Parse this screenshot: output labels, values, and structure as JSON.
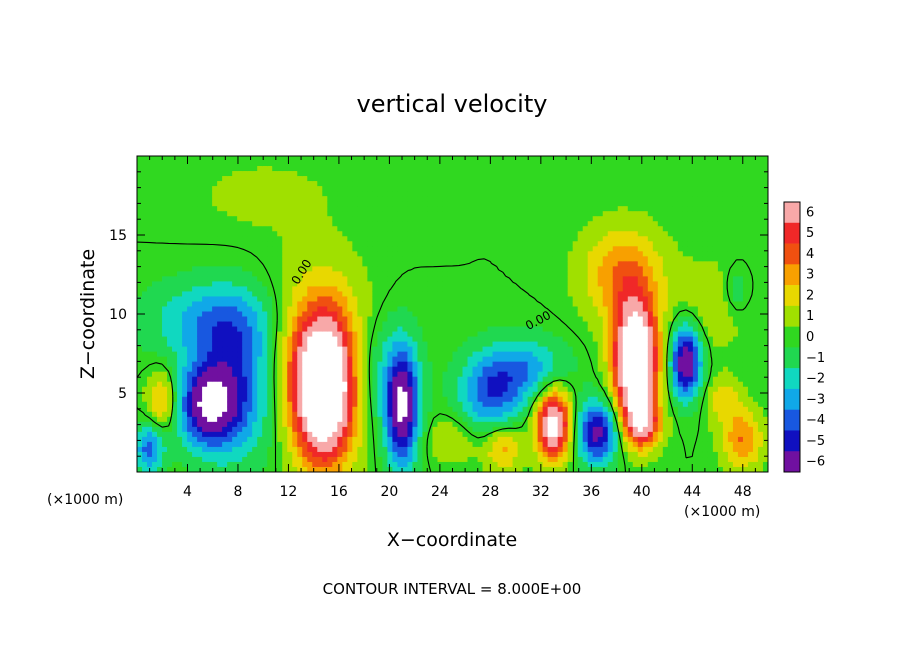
{
  "chart_data": {
    "type": "heatmap",
    "title": "vertical velocity",
    "xlabel": "X−coordinate",
    "ylabel": "Z−coordinate",
    "x_unit_left": "(×1000 m)",
    "x_unit_right": "(×1000 m)",
    "xlim": [
      0,
      50
    ],
    "ylim": [
      0,
      20
    ],
    "x_ticks": [
      4,
      8,
      12,
      16,
      20,
      24,
      28,
      32,
      36,
      40,
      44,
      48
    ],
    "y_ticks": [
      5,
      10,
      15
    ],
    "colorbar": {
      "levels": [
        6,
        5,
        4,
        3,
        2,
        1,
        0,
        -1,
        -2,
        -3,
        -4,
        -5,
        -6
      ],
      "labels": [
        "6",
        "5",
        "4",
        "3",
        "2",
        "1",
        "0",
        "−1",
        "−2",
        "−3",
        "−4",
        "−5",
        "−6"
      ],
      "colors": [
        "#F8A8A8",
        "#F02828",
        "#F05010",
        "#F8A000",
        "#E8D800",
        "#A0E000",
        "#30D820",
        "#20D850",
        "#10D8C0",
        "#10A8E8",
        "#1858E0",
        "#1010C0",
        "#7010A0"
      ]
    },
    "contour_labels": [
      "0.00",
      "0.00"
    ],
    "contour_interval_text": "CONTOUR INTERVAL =  8.000E+00",
    "cells": [
      {
        "x": 5.5,
        "z": 4.2,
        "amp": -6,
        "sx": 2.3,
        "sz": 2.6
      },
      {
        "x": 8.0,
        "z": 5.5,
        "amp": -4,
        "sx": 3.0,
        "sz": 4.5
      },
      {
        "x": 6.0,
        "z": 9.5,
        "amp": -3,
        "sx": 5.0,
        "sz": 2.5
      },
      {
        "x": 1.0,
        "z": 1.5,
        "amp": -4,
        "sx": 1.2,
        "sz": 1.6
      },
      {
        "x": 2.0,
        "z": 4.5,
        "amp": 3,
        "sx": 1.2,
        "sz": 2.0
      },
      {
        "x": 14.8,
        "z": 5.0,
        "amp": 10,
        "sx": 2.4,
        "sz": 4.5
      },
      {
        "x": 14.5,
        "z": 8.0,
        "amp": 3,
        "sx": 4.0,
        "sz": 5.0
      },
      {
        "x": 21.0,
        "z": 4.0,
        "amp": -7,
        "sx": 1.3,
        "sz": 3.6
      },
      {
        "x": 19.0,
        "z": 6.5,
        "amp": -2,
        "sx": 3.0,
        "sz": 3.5
      },
      {
        "x": 25.0,
        "z": 2.0,
        "amp": 1.5,
        "sx": 2.0,
        "sz": 1.5
      },
      {
        "x": 29.0,
        "z": 1.5,
        "amp": 3,
        "sx": 1.5,
        "sz": 1.5
      },
      {
        "x": 28.0,
        "z": 5.0,
        "amp": -4,
        "sx": 2.5,
        "sz": 2.5
      },
      {
        "x": 31.0,
        "z": 6.5,
        "amp": -3,
        "sx": 3.0,
        "sz": 2.0
      },
      {
        "x": 33.0,
        "z": 3.0,
        "amp": 8,
        "sx": 1.4,
        "sz": 2.2
      },
      {
        "x": 36.5,
        "z": 2.5,
        "amp": -6,
        "sx": 1.7,
        "sz": 2.0
      },
      {
        "x": 39.5,
        "z": 7.0,
        "amp": 11,
        "sx": 1.7,
        "sz": 3.6
      },
      {
        "x": 40.0,
        "z": 3.0,
        "amp": 5,
        "sx": 1.5,
        "sz": 1.5
      },
      {
        "x": 38.5,
        "z": 12.5,
        "amp": 3.5,
        "sx": 3.2,
        "sz": 3.0
      },
      {
        "x": 43.5,
        "z": 7.0,
        "amp": -7,
        "sx": 1.2,
        "sz": 2.3
      },
      {
        "x": 45.5,
        "z": 10.5,
        "amp": 1.2,
        "sx": 3.0,
        "sz": 3.0
      },
      {
        "x": 48.0,
        "z": 2.0,
        "amp": 3.5,
        "sx": 1.6,
        "sz": 1.8
      },
      {
        "x": 46.5,
        "z": 4.5,
        "amp": 2,
        "sx": 1.5,
        "sz": 1.5
      },
      {
        "x": 47.5,
        "z": 11.5,
        "amp": -1.5,
        "sx": 1.0,
        "sz": 1.5
      },
      {
        "x": 10.0,
        "z": 17.5,
        "amp": 0.8,
        "sx": 6.0,
        "sz": 2.5
      }
    ]
  }
}
